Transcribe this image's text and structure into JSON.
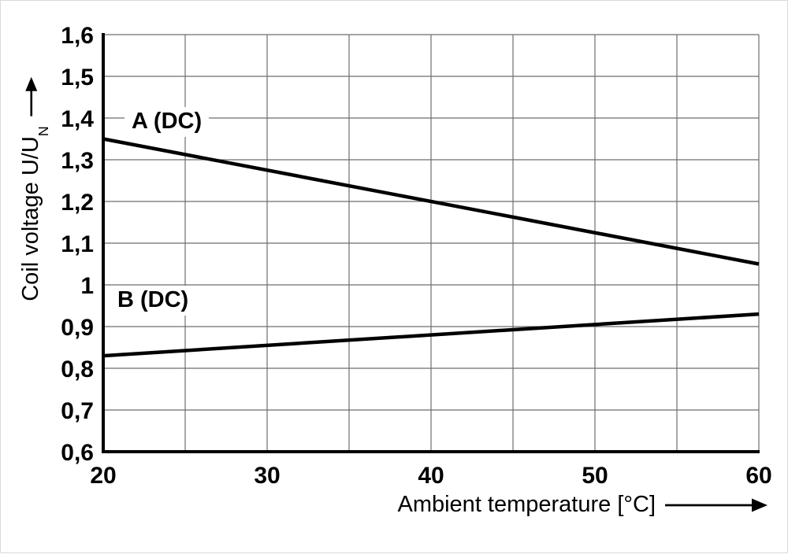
{
  "chart": {
    "y_axis_title": {
      "text": "Coil voltage U/U",
      "sub": "N"
    },
    "x_axis_title": "Ambient temperature [°C]",
    "series_labels": {
      "a": "A (DC)",
      "b": "B (DC)"
    }
  },
  "chart_data": {
    "type": "line",
    "title": "",
    "xlabel": "Ambient temperature [°C]",
    "ylabel": "Coil voltage U/U_N",
    "xlim": [
      20,
      60
    ],
    "ylim": [
      0.6,
      1.6
    ],
    "x_ticks": [
      20,
      30,
      40,
      50,
      60
    ],
    "x_tick_labels": [
      "20",
      "30",
      "40",
      "50",
      "60"
    ],
    "y_ticks": [
      0.6,
      0.7,
      0.8,
      0.9,
      1.0,
      1.1,
      1.2,
      1.3,
      1.4,
      1.5,
      1.6
    ],
    "y_tick_labels": [
      "0,6",
      "0,7",
      "0,8",
      "0,9",
      "1",
      "1,1",
      "1,2",
      "1,3",
      "1,4",
      "1,5",
      "1,6"
    ],
    "x_grid_step": 5,
    "y_grid_step": 0.1,
    "grid": true,
    "legend_position": "inline-labels",
    "series": [
      {
        "name": "A (DC)",
        "x": [
          20,
          60
        ],
        "values": [
          1.35,
          1.05
        ]
      },
      {
        "name": "B (DC)",
        "x": [
          20,
          60
        ],
        "values": [
          0.83,
          0.93
        ]
      }
    ],
    "line_color": "#000000",
    "grid_color": "#6e6e6e",
    "axis_color": "#000000"
  }
}
